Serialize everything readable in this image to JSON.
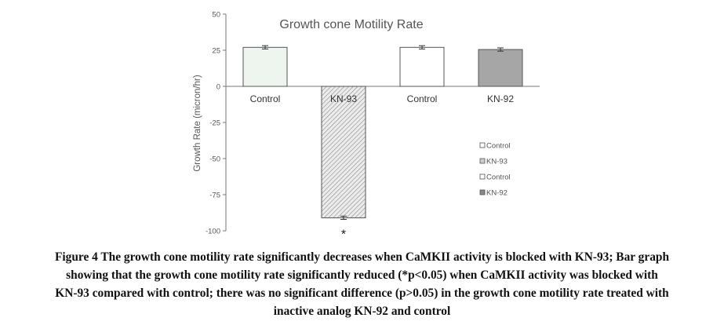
{
  "chart_data": {
    "type": "bar",
    "title": "Growth cone Motility Rate",
    "ylabel": "Growth Rate (micron/hr)",
    "xlabel": "",
    "ylim": [
      -100,
      50
    ],
    "yticks": [
      50,
      25,
      0,
      -25,
      -50,
      -75,
      -100
    ],
    "ytick_labels": [
      "50",
      "25",
      "0",
      "-25",
      "-50",
      "-75",
      "-100"
    ],
    "categories": [
      "Control",
      "KN-93",
      "Control",
      "KN-92"
    ],
    "values": [
      27,
      -91,
      27,
      25.5
    ],
    "error": [
      0.6,
      0.6,
      0.6,
      0.6
    ],
    "bar_fills": [
      "#eef5ef",
      "hatch",
      "#ffffff",
      "#a6a6a6"
    ],
    "significance": {
      "category_index": 1,
      "symbol": "*"
    },
    "legend": {
      "position": "right",
      "items": [
        {
          "label": "Control",
          "fill": "#ffffff"
        },
        {
          "label": "KN-93",
          "fill": "#cccccc"
        },
        {
          "label": "Control",
          "fill": "#ffffff"
        },
        {
          "label": "KN-92",
          "fill": "#888888"
        }
      ]
    },
    "grid": false
  },
  "caption": {
    "lines": [
      "Figure 4 The growth cone motility rate significantly decreases when CaMKII activity is blocked with KN-93; Bar graph",
      "showing that the growth cone motility rate significantly reduced (*p<0.05) when CaMKII activity was blocked with",
      "KN-93 compared with control; there was no significant difference (p>0.05) in the growth cone motility rate treated with",
      "inactive analog KN-92 and control"
    ]
  }
}
